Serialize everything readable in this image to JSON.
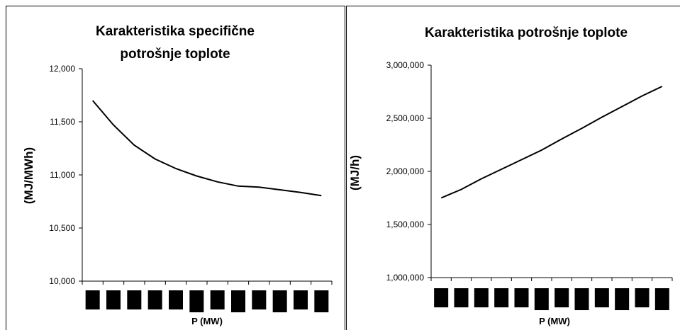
{
  "chart_data": [
    {
      "type": "line",
      "title_lines": [
        "Karakteristika specifične",
        "potrošnje toplote"
      ],
      "ylabel": "(MJ/MWh)",
      "xlabel": "P (MW)",
      "ylim": [
        10000,
        12000
      ],
      "yticks": [
        "12,000",
        "11,500",
        "11,000",
        "10,500",
        "10,000"
      ],
      "ytick_values": [
        12000,
        11500,
        11000,
        10500,
        10000
      ],
      "x_categories": 12,
      "x_tick_labels": "redacted (black blocks)",
      "line_color": "#000000",
      "series": [
        {
          "values": [
            11700,
            11470,
            11280,
            11150,
            11060,
            10990,
            10935,
            10895,
            10885,
            10860,
            10835,
            10805
          ]
        }
      ]
    },
    {
      "type": "line",
      "title_lines": [
        "Karakteristika potrošnje toplote"
      ],
      "ylabel": "(MJ/h)",
      "xlabel": "P (MW)",
      "ylim": [
        1000000,
        3000000
      ],
      "yticks": [
        "3,000,000",
        "2,500,000",
        "2,000,000",
        "1,500,000",
        "1,000,000"
      ],
      "ytick_values": [
        3000000,
        2500000,
        2000000,
        1500000,
        1000000
      ],
      "x_categories": 12,
      "x_tick_labels": "redacted (black blocks)",
      "line_color": "#000000",
      "series": [
        {
          "values": [
            1750000,
            1830000,
            1930000,
            2020000,
            2110000,
            2200000,
            2305000,
            2405000,
            2510000,
            2610000,
            2710000,
            2800000
          ]
        }
      ]
    }
  ]
}
